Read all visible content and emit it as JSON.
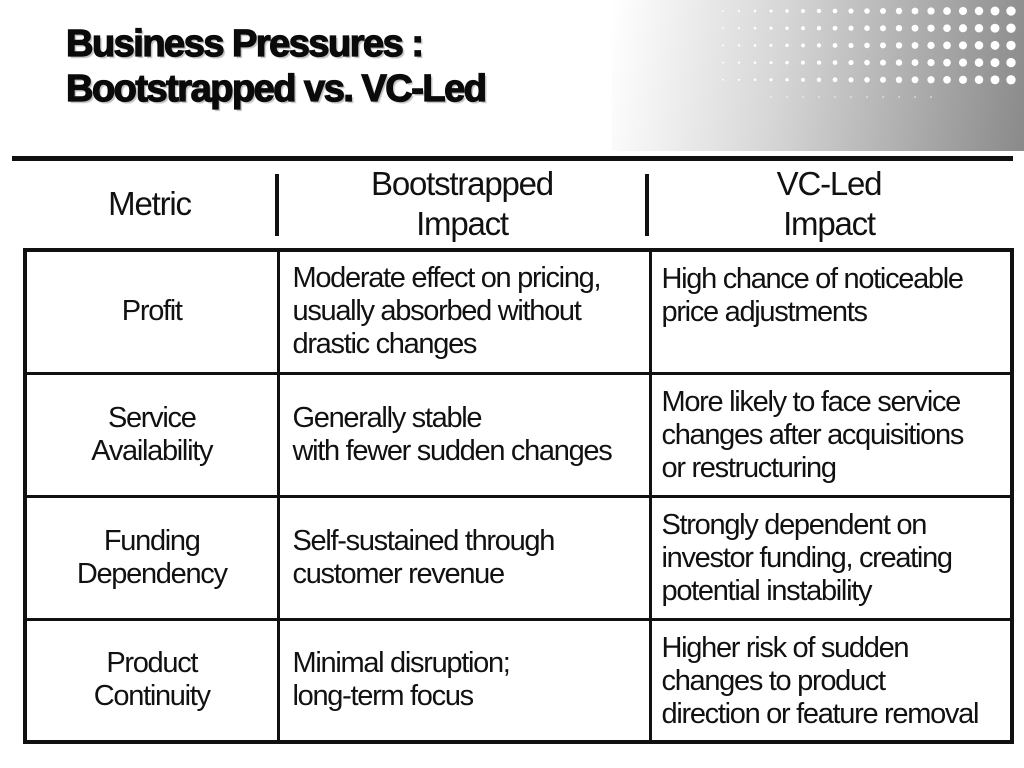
{
  "title": "Business Pressures :\nBootstrapped vs. VC-Led",
  "table": {
    "headers": [
      "Metric",
      "Bootstrapped\nImpact",
      "VC-Led\nImpact"
    ],
    "rows": [
      {
        "metric": "Profit",
        "bootstrapped_impact": "Moderate effect on pricing,\nusually absorbed without\ndrastic changes",
        "vc_led_impact": "High chance of noticeable\nprice adjustments"
      },
      {
        "metric": "Service\nAvailability",
        "bootstrapped_impact": "Generally stable\nwith fewer sudden changes",
        "vc_led_impact": "More likely to face service\nchanges after acquisitions\nor restructuring"
      },
      {
        "metric": "Funding\nDependency",
        "bootstrapped_impact": "Self-sustained through\ncustomer revenue",
        "vc_led_impact": "Strongly dependent on\ninvestor funding, creating\npotential instability"
      },
      {
        "metric": "Product\nContinuity",
        "bootstrapped_impact": "Minimal disruption;\nlong-term focus",
        "vc_led_impact": "Higher risk of sudden\nchanges to product\ndirection or feature removal"
      }
    ]
  },
  "decoration": {
    "name": "halftone-dots",
    "dot_color": "#ffffff",
    "gradient_color": "#8a8a8a"
  },
  "colors": {
    "background": "#ffffff",
    "text": "#111111",
    "border": "#111111"
  }
}
